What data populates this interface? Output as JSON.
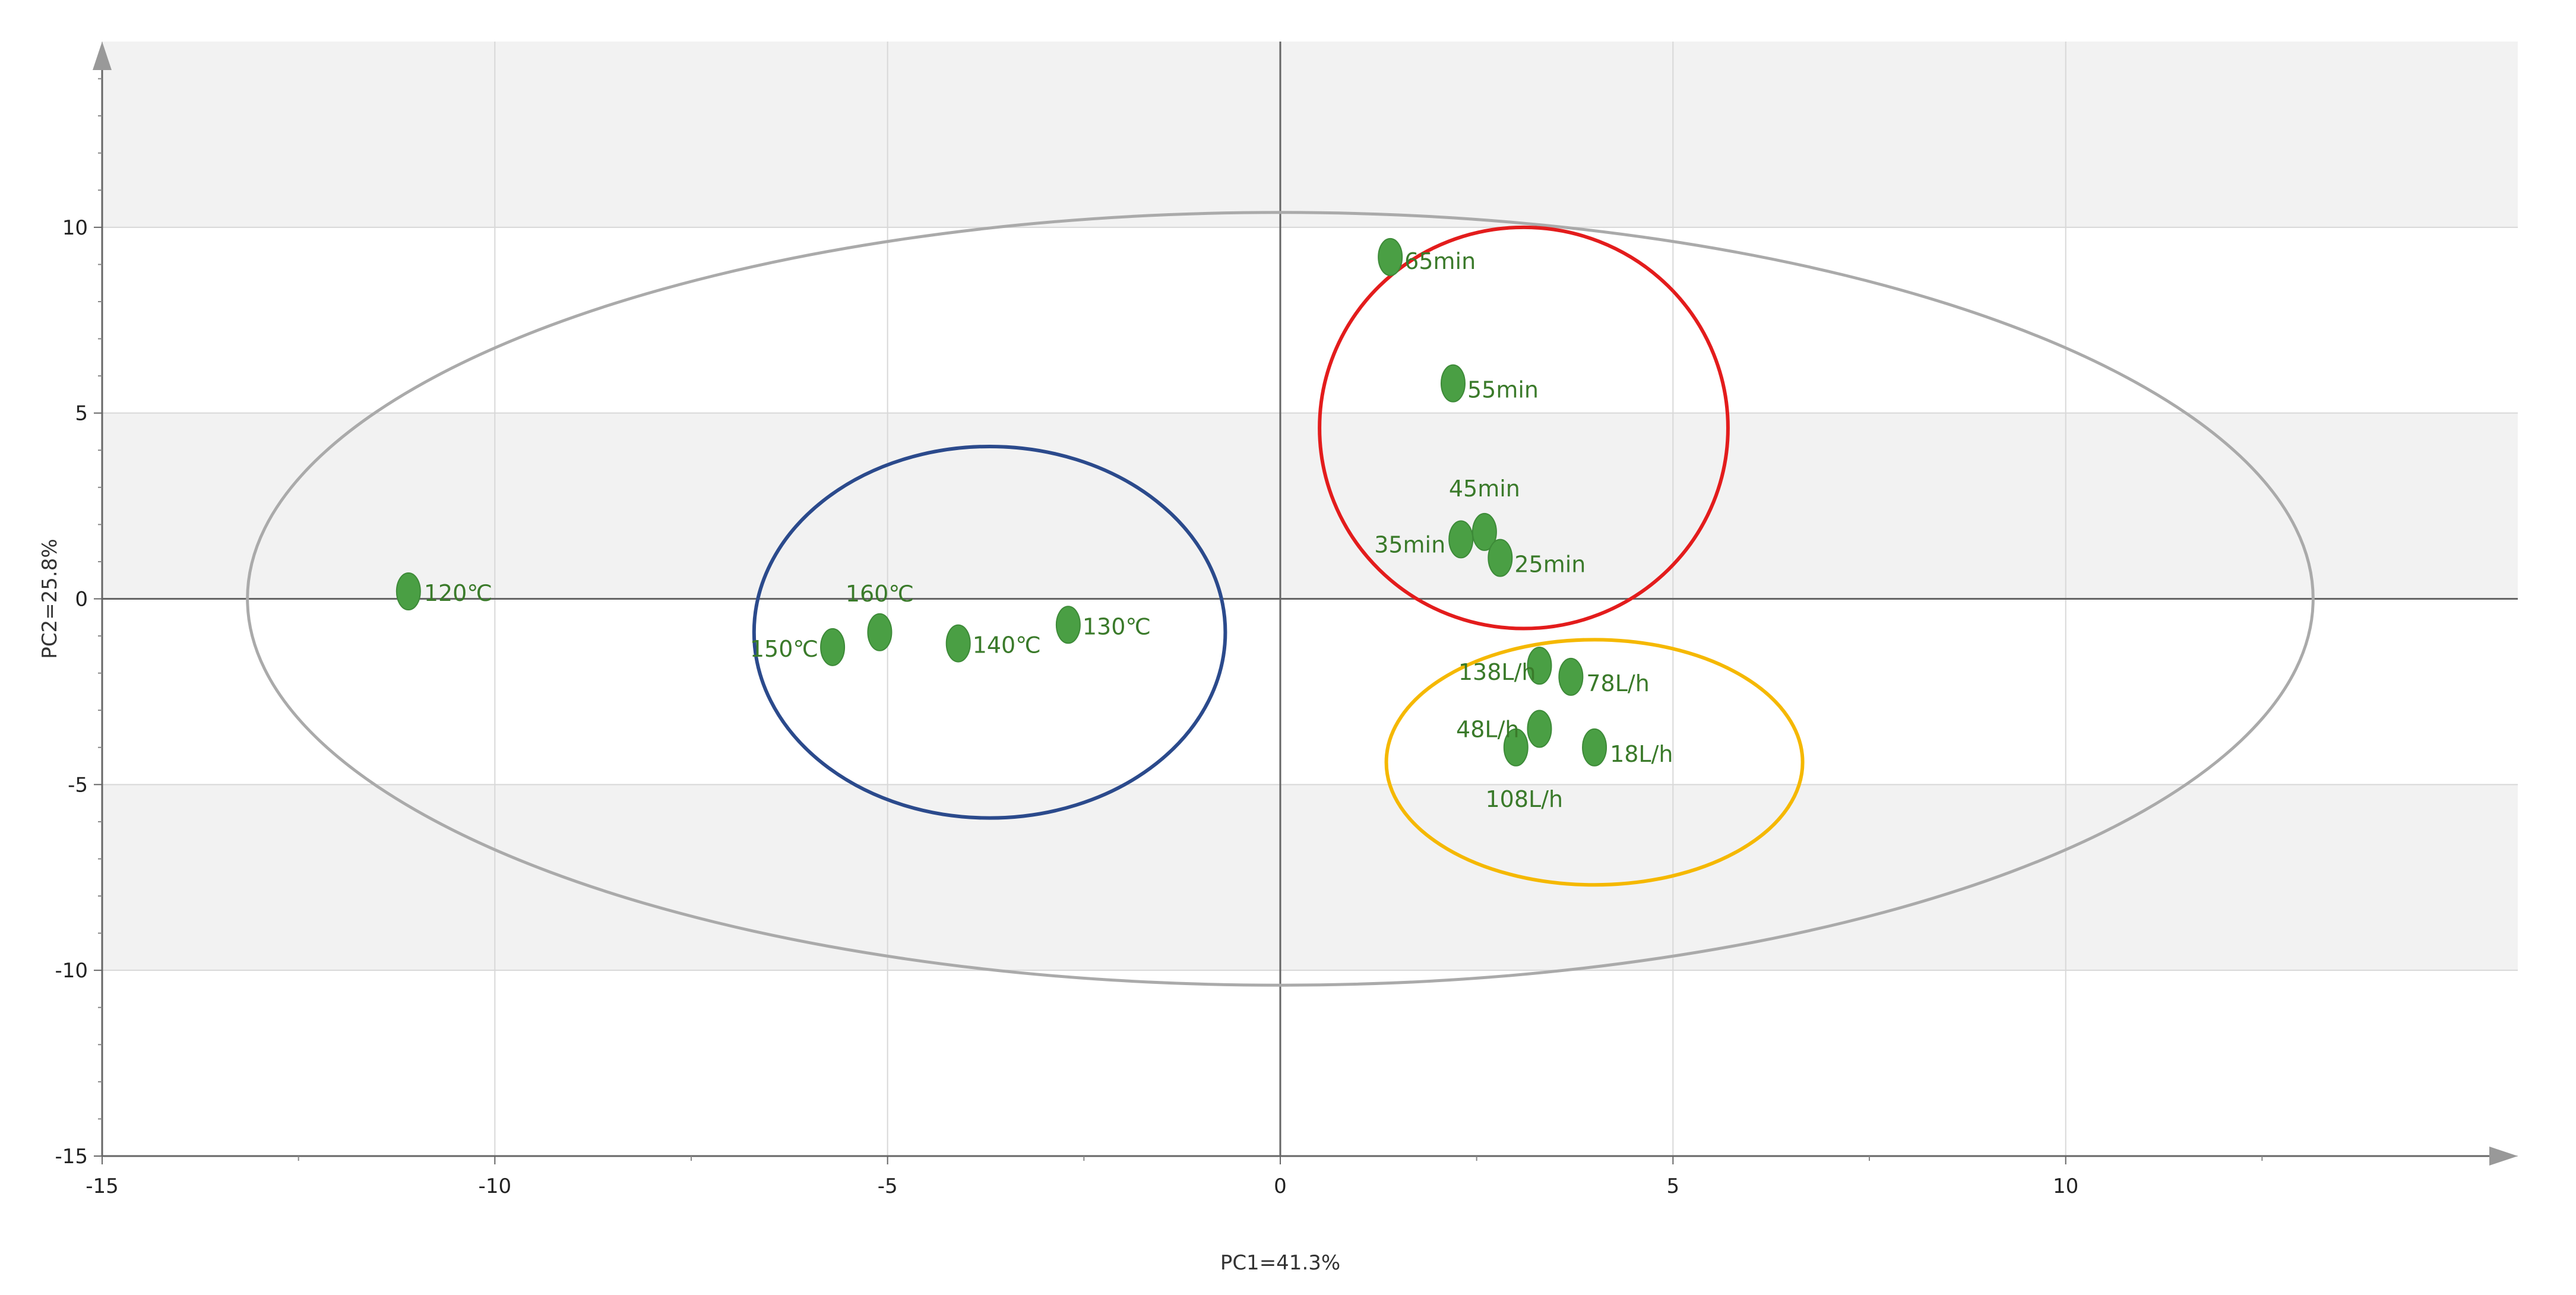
{
  "chart_data": {
    "type": "scatter",
    "title": "",
    "xlabel": "PC1=41.3%",
    "ylabel": "PC2=25.8%",
    "xlim": [
      -15,
      15
    ],
    "ylim": [
      -15,
      15
    ],
    "xticks": [
      -15,
      -10,
      -5,
      0,
      5,
      10
    ],
    "yticks": [
      -15,
      -10,
      -5,
      0,
      5,
      10
    ],
    "x_tick_labels": [
      "-15",
      "-10",
      "-5",
      "0",
      "5",
      "10"
    ],
    "y_tick_labels": [
      "-15",
      "-10",
      "-5",
      "0",
      "5",
      "10"
    ],
    "grid": true,
    "point_color": "#4a9f44",
    "points": [
      {
        "label": "120℃",
        "x": -11.1,
        "y": 0.2
      },
      {
        "label": "150℃",
        "x": -5.7,
        "y": -1.3
      },
      {
        "label": "160℃",
        "x": -5.1,
        "y": -0.9
      },
      {
        "label": "140℃",
        "x": -4.1,
        "y": -1.2
      },
      {
        "label": "130℃",
        "x": -2.7,
        "y": -0.7
      },
      {
        "label": "65min",
        "x": 1.4,
        "y": 9.2
      },
      {
        "label": "55min",
        "x": 2.2,
        "y": 5.8
      },
      {
        "label": "45min",
        "x": 2.6,
        "y": 1.8
      },
      {
        "label": "35min",
        "x": 2.3,
        "y": 1.6
      },
      {
        "label": "25min",
        "x": 2.8,
        "y": 1.1
      },
      {
        "label": "138L/h",
        "x": 3.3,
        "y": -1.8
      },
      {
        "label": "78L/h",
        "x": 3.7,
        "y": -2.1
      },
      {
        "label": "48L/h",
        "x": 3.3,
        "y": -3.5
      },
      {
        "label": "108L/h",
        "x": 3.0,
        "y": -4.0
      },
      {
        "label": "18L/h",
        "x": 4.0,
        "y": -4.0
      }
    ],
    "ellipses": [
      {
        "name": "confidence-ellipse",
        "cx": 0.0,
        "cy": 0.0,
        "rx": 13.15,
        "ry": 10.4,
        "color": "#aaaaaa"
      },
      {
        "name": "temperature-group-ellipse",
        "cx": -3.7,
        "cy": -0.9,
        "rx": 3.0,
        "ry": 5.0,
        "color": "#2b4a8c"
      },
      {
        "name": "time-group-ellipse",
        "cx": 3.1,
        "cy": 4.6,
        "rx": 2.6,
        "ry": 5.4,
        "color": "#e31c1c"
      },
      {
        "name": "flow-group-ellipse",
        "cx": 4.0,
        "cy": -4.4,
        "rx": 2.65,
        "ry": 3.3,
        "color": "#f5b800"
      }
    ]
  }
}
